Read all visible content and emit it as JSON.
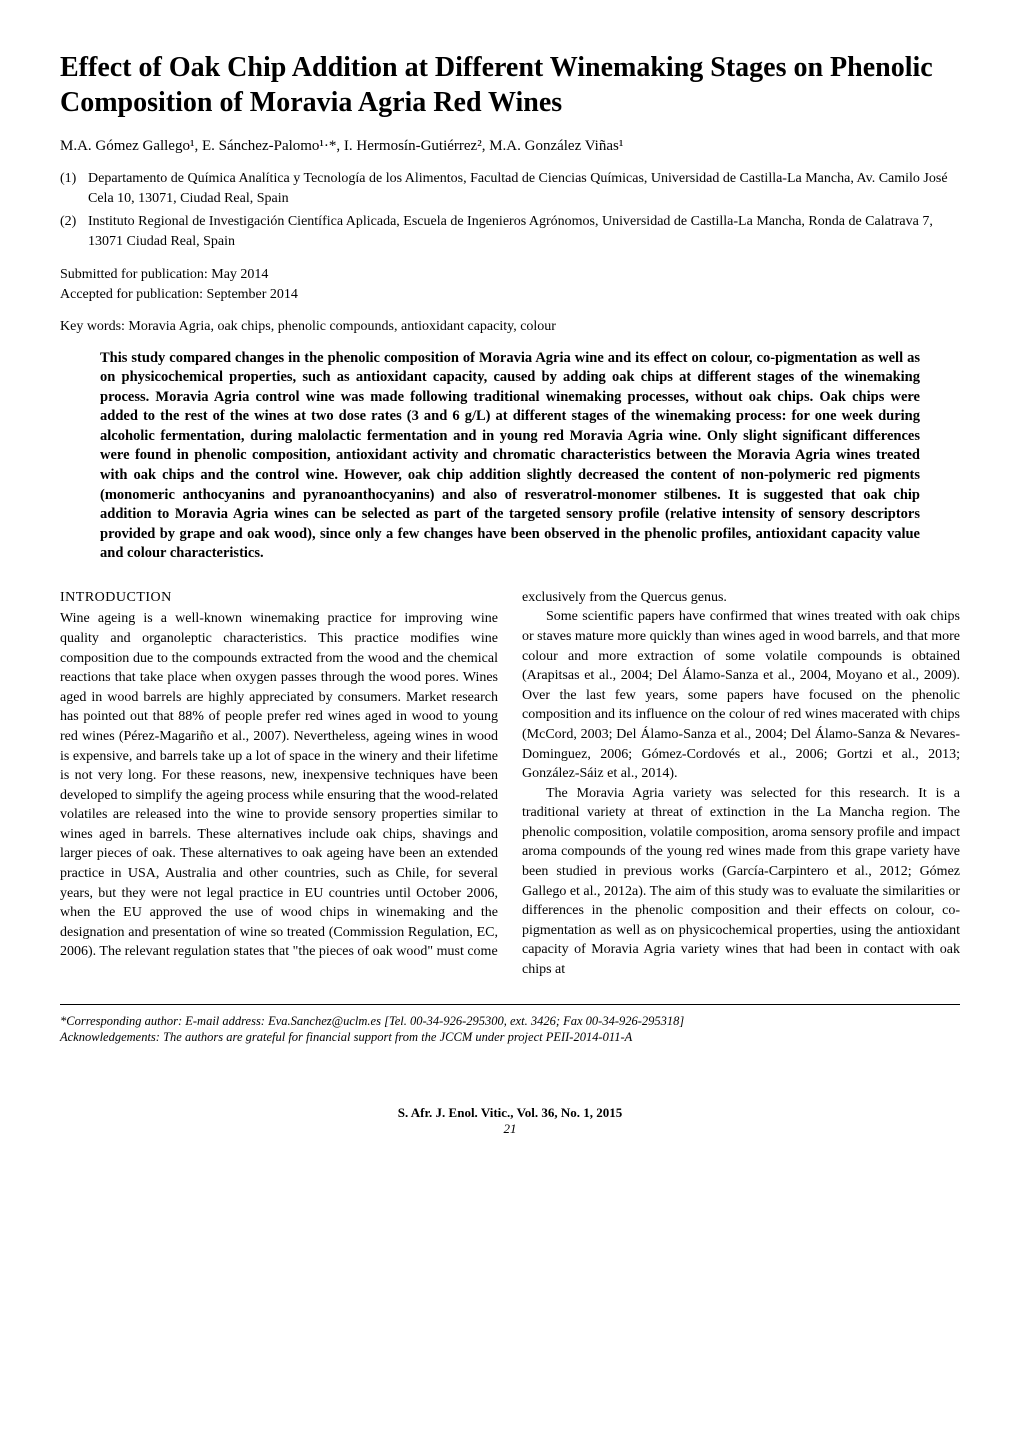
{
  "title": "Effect of Oak Chip Addition at Different Winemaking Stages on Phenolic Composition of Moravia Agria Red Wines",
  "authors": "M.A. Gómez Gallego¹, E. Sánchez-Palomo¹·*, I. Hermosín-Gutiérrez², M.A. González Viñas¹",
  "affiliations": [
    {
      "num": "(1)",
      "text": "Departamento de Química Analítica y Tecnología de los Alimentos, Facultad de Ciencias Químicas, Universidad de Castilla-La Mancha, Av. Camilo José Cela 10, 13071, Ciudad Real, Spain"
    },
    {
      "num": "(2)",
      "text": "Instituto Regional de Investigación Científica Aplicada, Escuela de Ingenieros Agrónomos, Universidad de Castilla-La Mancha, Ronda de Calatrava 7, 13071 Ciudad Real, Spain"
    }
  ],
  "submitted": "Submitted for publication: May 2014",
  "accepted": "Accepted for publication: September 2014",
  "keywords": "Key words: Moravia Agria, oak chips, phenolic compounds, antioxidant capacity, colour",
  "abstract": "This study compared changes in the phenolic composition of Moravia Agria wine and its effect on colour, co-pigmentation as well as on physicochemical properties, such as antioxidant capacity, caused by adding oak chips at different stages of the winemaking process. Moravia Agria control wine was made following traditional winemaking processes, without oak chips. Oak chips were added to the rest of the wines at two dose rates (3 and 6 g/L) at different stages of the winemaking process: for one week during alcoholic fermentation, during malolactic fermentation and in young red Moravia Agria wine. Only slight significant differences were found in phenolic composition, antioxidant activity and chromatic characteristics between the Moravia Agria wines treated with oak chips and the control wine. However, oak chip addition slightly decreased the content of non-polymeric red pigments (monomeric anthocyanins and pyranoanthocyanins) and also of resveratrol-monomer stilbenes. It is suggested that oak chip addition to Moravia Agria wines can be selected as part of the targeted sensory profile (relative intensity of sensory descriptors provided by grape and oak wood), since only a few changes have been observed in the phenolic profiles, antioxidant capacity value and colour characteristics.",
  "section_heading": "INTRODUCTION",
  "col1_p1": "Wine ageing is a well-known winemaking practice for improving wine quality and organoleptic characteristics. This practice modifies wine composition due to the compounds extracted from the wood and the chemical reactions that take place when oxygen passes through the wood pores. Wines aged in wood barrels are highly appreciated by consumers. Market research has pointed out that 88% of people prefer red wines aged in wood to young red wines (Pérez-Magariño et al., 2007). Nevertheless, ageing wines in wood is expensive, and barrels take up a lot of space in the winery and their lifetime is not very long. For these reasons, new, inexpensive techniques have been developed to simplify the ageing process while ensuring that the wood-related volatiles are released into the wine to provide sensory properties similar to wines aged in barrels. These alternatives include oak chips, shavings and larger pieces of oak. These alternatives to oak ageing have been an extended practice in USA, Australia and other countries, such as Chile, for several years, but they were not legal practice in EU countries until October 2006, when the EU approved the use of wood chips in winemaking and the designation and presentation of wine so treated (Commission Regulation, EC, 2006). The relevant regulation states that \"the pieces of oak wood\" must come",
  "col2_p1": "exclusively from the Quercus genus.",
  "col2_p2": "Some scientific papers have confirmed that wines treated with oak chips or staves mature more quickly than wines aged in wood barrels, and that more colour and more extraction of some volatile compounds is obtained (Arapitsas et al., 2004; Del Álamo-Sanza et al., 2004, Moyano et al., 2009). Over the last few years, some papers have focused on the phenolic composition and its influence on the colour of red wines macerated with chips (McCord, 2003; Del Álamo-Sanza et al., 2004; Del Álamo-Sanza & Nevares-Dominguez, 2006; Gómez-Cordovés et al., 2006; Gortzi et al., 2013; González-Sáiz et al., 2014).",
  "col2_p3": "The Moravia Agria variety was selected for this research. It is a traditional variety at threat of extinction in the La Mancha region. The phenolic composition, volatile composition, aroma sensory profile and impact aroma compounds of the young red wines made from this grape variety have been studied in previous works (García-Carpintero et al., 2012; Gómez Gallego et al., 2012a). The aim of this study was to evaluate the similarities or differences in the phenolic composition and their effects on colour, co-pigmentation as well as on physicochemical properties, using the antioxidant capacity of Moravia Agria variety wines that had been in contact with oak chips at",
  "footnote1": "*Corresponding author: E-mail address: Eva.Sanchez@uclm.es [Tel. 00-34-926-295300, ext. 3426; Fax 00-34-926-295318]",
  "footnote2": "Acknowledgements: The authors are grateful for financial support from the JCCM under project PEII-2014-011-A",
  "journal_line": "S. Afr. J. Enol. Vitic., Vol. 36, No. 1, 2015",
  "page_number": "21"
}
